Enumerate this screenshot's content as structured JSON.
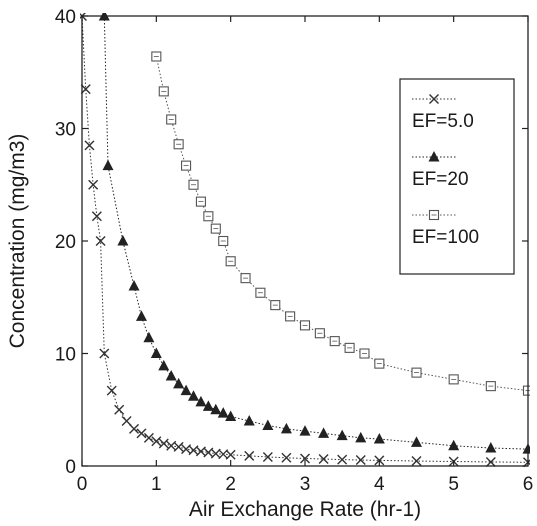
{
  "chart_data": {
    "type": "line",
    "xlabel": "Air Exchange Rate  (hr-1)",
    "ylabel": "Concentration  (mg/m3)",
    "xlim": [
      0,
      6
    ],
    "ylim": [
      0,
      40
    ],
    "x_ticks": [
      "0",
      "1",
      "2",
      "3",
      "4",
      "5",
      "6"
    ],
    "y_ticks": [
      "0",
      "10",
      "20",
      "30",
      "40"
    ],
    "legend_position": "top-right",
    "grid": false,
    "series": [
      {
        "name": "EF=5.0",
        "marker": "x",
        "color": "#333333",
        "line_style": "dotted",
        "x": [
          0.0,
          0.05,
          0.1,
          0.15,
          0.2,
          0.25,
          0.3,
          0.4,
          0.5,
          0.6,
          0.7,
          0.8,
          0.9,
          1.0,
          1.1,
          1.2,
          1.3,
          1.4,
          1.5,
          1.6,
          1.7,
          1.8,
          1.9,
          2.0,
          2.25,
          2.5,
          2.75,
          3.0,
          3.25,
          3.5,
          3.75,
          4.0,
          4.5,
          5.0,
          5.5,
          6.0
        ],
        "y": [
          40.0,
          33.5,
          28.5,
          25.0,
          22.2,
          20.0,
          10.0,
          6.7,
          5.0,
          4.0,
          3.3,
          2.9,
          2.5,
          2.2,
          2.0,
          1.8,
          1.7,
          1.5,
          1.4,
          1.3,
          1.2,
          1.1,
          1.05,
          1.0,
          0.9,
          0.8,
          0.73,
          0.67,
          0.62,
          0.57,
          0.53,
          0.5,
          0.44,
          0.4,
          0.36,
          0.33
        ]
      },
      {
        "name": "EF=20",
        "marker": "triangle",
        "color": "#222222",
        "line_style": "dotted",
        "x": [
          0.3,
          0.35,
          0.55,
          0.7,
          0.8,
          0.9,
          1.0,
          1.1,
          1.2,
          1.3,
          1.4,
          1.5,
          1.6,
          1.7,
          1.8,
          1.9,
          2.0,
          2.25,
          2.5,
          2.75,
          3.0,
          3.25,
          3.5,
          3.75,
          4.0,
          4.5,
          5.0,
          5.5,
          6.0
        ],
        "y": [
          40.0,
          26.7,
          20.0,
          16.0,
          13.3,
          11.4,
          10.0,
          8.9,
          8.0,
          7.3,
          6.7,
          6.2,
          5.7,
          5.3,
          5.0,
          4.7,
          4.4,
          4.0,
          3.6,
          3.3,
          3.1,
          2.9,
          2.7,
          2.5,
          2.4,
          2.1,
          1.8,
          1.6,
          1.5
        ]
      },
      {
        "name": "EF=100",
        "marker": "square",
        "color": "#555555",
        "line_style": "dotted",
        "x": [
          1.0,
          1.1,
          1.2,
          1.3,
          1.4,
          1.5,
          1.6,
          1.7,
          1.8,
          1.9,
          2.0,
          2.2,
          2.4,
          2.6,
          2.8,
          3.0,
          3.2,
          3.4,
          3.6,
          3.8,
          4.0,
          4.5,
          5.0,
          5.5,
          6.0
        ],
        "y": [
          36.4,
          33.3,
          30.8,
          28.6,
          26.7,
          25.0,
          23.5,
          22.2,
          21.1,
          20.0,
          18.2,
          16.7,
          15.4,
          14.3,
          13.3,
          12.5,
          11.8,
          11.1,
          10.5,
          10.0,
          9.1,
          8.3,
          7.7,
          7.1,
          6.7
        ]
      }
    ]
  }
}
